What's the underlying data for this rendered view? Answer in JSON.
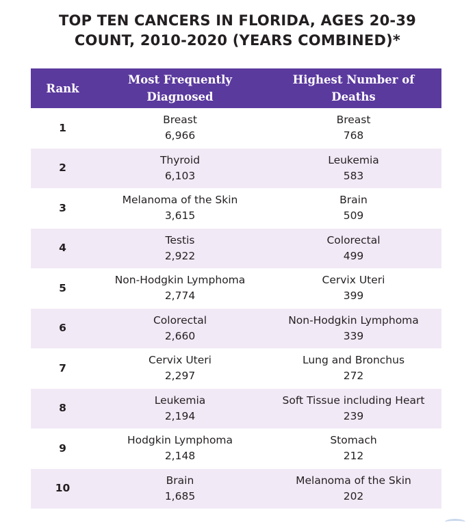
{
  "title": {
    "line1": "TOP TEN CANCERS IN FLORIDA, AGES 20-39",
    "line2": "COUNT, 2010-2020 (YEARS COMBINED)*"
  },
  "table": {
    "headers": {
      "rank": "Rank",
      "diagnosed_line1": "Most Frequently",
      "diagnosed_line2": "Diagnosed",
      "deaths_line1": "Highest Number of",
      "deaths_line2": "Deaths"
    },
    "rows": [
      {
        "rank": "1",
        "diagnosed": {
          "name": "Breast",
          "count": "6,966"
        },
        "deaths": {
          "name": "Breast",
          "count": "768"
        }
      },
      {
        "rank": "2",
        "diagnosed": {
          "name": "Thyroid",
          "count": "6,103"
        },
        "deaths": {
          "name": "Leukemia",
          "count": "583"
        }
      },
      {
        "rank": "3",
        "diagnosed": {
          "name": "Melanoma of the Skin",
          "count": "3,615"
        },
        "deaths": {
          "name": "Brain",
          "count": "509"
        }
      },
      {
        "rank": "4",
        "diagnosed": {
          "name": "Testis",
          "count": "2,922"
        },
        "deaths": {
          "name": "Colorectal",
          "count": "499"
        }
      },
      {
        "rank": "5",
        "diagnosed": {
          "name": "Non-Hodgkin Lymphoma",
          "count": "2,774"
        },
        "deaths": {
          "name": "Cervix Uteri",
          "count": "399"
        }
      },
      {
        "rank": "6",
        "diagnosed": {
          "name": "Colorectal",
          "count": "2,660"
        },
        "deaths": {
          "name": "Non-Hodgkin Lymphoma",
          "count": "339"
        }
      },
      {
        "rank": "7",
        "diagnosed": {
          "name": "Cervix Uteri",
          "count": "2,297"
        },
        "deaths": {
          "name": "Lung and Bronchus",
          "count": "272"
        }
      },
      {
        "rank": "8",
        "diagnosed": {
          "name": "Leukemia",
          "count": "2,194"
        },
        "deaths": {
          "name": "Soft Tissue including Heart",
          "count": "239"
        }
      },
      {
        "rank": "9",
        "diagnosed": {
          "name": "Hodgkin Lymphoma",
          "count": "2,148"
        },
        "deaths": {
          "name": "Stomach",
          "count": "212"
        }
      },
      {
        "rank": "10",
        "diagnosed": {
          "name": "Brain",
          "count": "1,685"
        },
        "deaths": {
          "name": "Melanoma of the Skin",
          "count": "202"
        }
      }
    ]
  },
  "colors": {
    "header_bg": "#5b3a9e",
    "header_text": "#ffffff",
    "alt_row_bg": "#f2e9f6",
    "text": "#231f20"
  }
}
